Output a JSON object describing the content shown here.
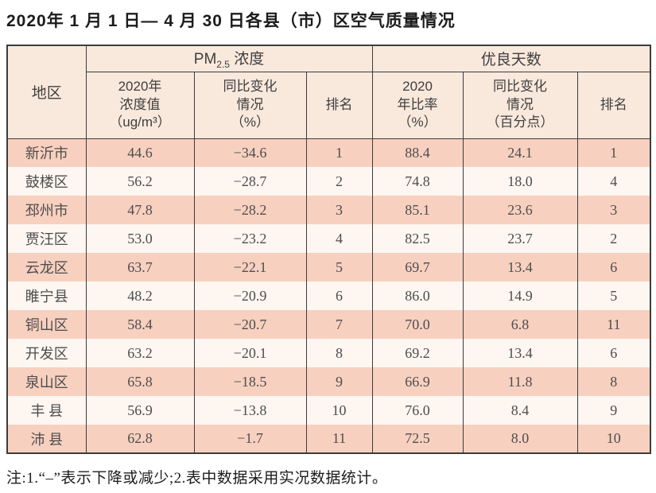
{
  "page": {
    "title": "2020年 1 月 1 日— 4 月 30 日各县（市）区空气质量情况",
    "footnote": "注:1.“–”表示下降或减少;2.表中数据采用实况数据统计。"
  },
  "colors": {
    "header_bg": "#f9e8dc",
    "row_odd_bg": "#f8d0c0",
    "row_even_bg": "#fdf6f1",
    "border": "#3c3c3c",
    "text": "#4d4d4d"
  },
  "table": {
    "headers": {
      "region": "地区",
      "pm25_group_prefix": "PM",
      "pm25_group_sub": "2.5",
      "pm25_group_suffix": " 浓度",
      "good_days_group": "优良天数",
      "pm25_value": "2020年\n浓度值\n（ug/m³）",
      "pm25_change": "同比变化\n情况\n（%）",
      "pm25_rank": "排名",
      "good_rate": "2020\n年比率\n（%）",
      "good_change": "同比变化\n情况\n（百分点）",
      "good_rank": "排名"
    },
    "column_keys": [
      "region",
      "pm25_value",
      "pm25_change",
      "pm25_rank",
      "good_rate",
      "good_change",
      "good_rank"
    ],
    "rows": [
      {
        "region": "新沂市",
        "pm25_value": "44.6",
        "pm25_change": "−34.6",
        "pm25_rank": "1",
        "good_rate": "88.4",
        "good_change": "24.1",
        "good_rank": "1"
      },
      {
        "region": "鼓楼区",
        "pm25_value": "56.2",
        "pm25_change": "−28.7",
        "pm25_rank": "2",
        "good_rate": "74.8",
        "good_change": "18.0",
        "good_rank": "4"
      },
      {
        "region": "邳州市",
        "pm25_value": "47.8",
        "pm25_change": "−28.2",
        "pm25_rank": "3",
        "good_rate": "85.1",
        "good_change": "23.6",
        "good_rank": "3"
      },
      {
        "region": "贾汪区",
        "pm25_value": "53.0",
        "pm25_change": "−23.2",
        "pm25_rank": "4",
        "good_rate": "82.5",
        "good_change": "23.7",
        "good_rank": "2"
      },
      {
        "region": "云龙区",
        "pm25_value": "63.7",
        "pm25_change": "−22.1",
        "pm25_rank": "5",
        "good_rate": "69.7",
        "good_change": "13.4",
        "good_rank": "6"
      },
      {
        "region": "睢宁县",
        "pm25_value": "48.2",
        "pm25_change": "−20.9",
        "pm25_rank": "6",
        "good_rate": "86.0",
        "good_change": "14.9",
        "good_rank": "5"
      },
      {
        "region": "铜山区",
        "pm25_value": "58.4",
        "pm25_change": "−20.7",
        "pm25_rank": "7",
        "good_rate": "70.0",
        "good_change": "6.8",
        "good_rank": "11"
      },
      {
        "region": "开发区",
        "pm25_value": "63.2",
        "pm25_change": "−20.1",
        "pm25_rank": "8",
        "good_rate": "69.2",
        "good_change": "13.4",
        "good_rank": "6"
      },
      {
        "region": "泉山区",
        "pm25_value": "65.8",
        "pm25_change": "−18.5",
        "pm25_rank": "9",
        "good_rate": "66.9",
        "good_change": "11.8",
        "good_rank": "8"
      },
      {
        "region": "丰 县",
        "pm25_value": "56.9",
        "pm25_change": "−13.8",
        "pm25_rank": "10",
        "good_rate": "76.0",
        "good_change": "8.4",
        "good_rank": "9"
      },
      {
        "region": "沛 县",
        "pm25_value": "62.8",
        "pm25_change": "−1.7",
        "pm25_rank": "11",
        "good_rate": "72.5",
        "good_change": "8.0",
        "good_rank": "10"
      }
    ]
  }
}
